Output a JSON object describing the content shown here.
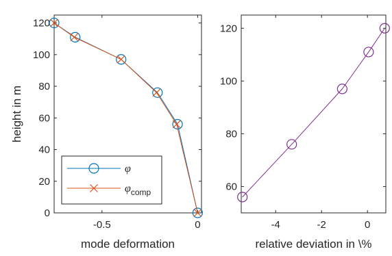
{
  "chart_data": [
    {
      "type": "line",
      "title": "",
      "xlabel": "mode deformation",
      "ylabel": "height in m",
      "xlim": [
        -0.75,
        0.02
      ],
      "ylim": [
        0,
        125
      ],
      "xticks": [
        -0.5,
        0
      ],
      "xtick_labels": [
        "-0.5",
        "0"
      ],
      "yticks": [
        0,
        20,
        40,
        60,
        80,
        100,
        120
      ],
      "ytick_labels": [
        "0",
        "20",
        "40",
        "60",
        "80",
        "100",
        "120"
      ],
      "grid": false,
      "legend_position": "bottom-left",
      "series": [
        {
          "name": "φ",
          "legend_subscript": "",
          "color": "#0072BD",
          "marker": "circle",
          "x": [
            -0.75,
            -0.64,
            -0.4,
            -0.21,
            -0.105,
            0.0
          ],
          "y": [
            120,
            111,
            97,
            76,
            56,
            0
          ]
        },
        {
          "name": "φ",
          "legend_subscript": "comp",
          "color": "#D95319",
          "marker": "cross",
          "x": [
            -0.75,
            -0.645,
            -0.4,
            -0.215,
            -0.11,
            0.0
          ],
          "y": [
            120,
            111,
            97,
            76,
            56,
            0
          ]
        }
      ]
    },
    {
      "type": "line",
      "title": "",
      "xlabel": "relative deviation in \\%",
      "ylabel": "",
      "xlim": [
        -5.5,
        0.8
      ],
      "ylim": [
        50,
        125
      ],
      "xticks": [
        -4,
        -2,
        0
      ],
      "xtick_labels": [
        "-4",
        "-2",
        "0"
      ],
      "yticks": [
        60,
        80,
        100,
        120
      ],
      "ytick_labels": [
        "60",
        "80",
        "100",
        "120"
      ],
      "grid": false,
      "series": [
        {
          "color": "#7E2F8E",
          "marker": "circle",
          "x": [
            -5.45,
            -3.3,
            -1.1,
            0.05,
            0.75
          ],
          "y": [
            56,
            76,
            97,
            111,
            120
          ]
        }
      ]
    }
  ]
}
